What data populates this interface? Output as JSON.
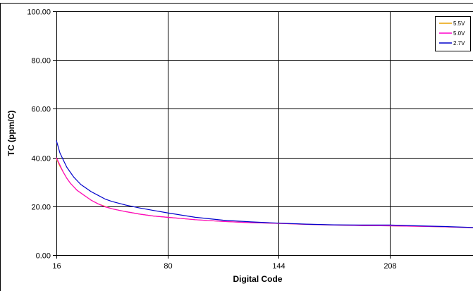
{
  "chart_data": {
    "type": "line",
    "title": "",
    "xlabel": "Digital Code",
    "ylabel": "TC (ppm/C)",
    "xlim": [
      16,
      256
    ],
    "ylim": [
      0,
      100
    ],
    "x_ticks": [
      16,
      80,
      144,
      208
    ],
    "x_tick_labels": [
      "16",
      "80",
      "144",
      "208"
    ],
    "y_ticks": [
      0,
      20,
      40,
      60,
      80,
      100
    ],
    "y_tick_labels": [
      "0.00",
      "20.00",
      "40.00",
      "60.00",
      "80.00",
      "100.00"
    ],
    "grid": true,
    "legend_position": "top-right",
    "x": [
      16,
      18,
      20,
      22,
      24,
      26,
      28,
      30,
      32,
      36,
      40,
      44,
      48,
      56,
      64,
      72,
      80,
      96,
      112,
      128,
      144,
      160,
      176,
      192,
      208,
      224,
      240,
      256
    ],
    "series": [
      {
        "name": "5.5V",
        "color": "#E8A000",
        "values": [
          39.5,
          36.5,
          34.0,
          31.5,
          29.5,
          28.0,
          26.5,
          25.5,
          24.5,
          22.5,
          21.0,
          20.0,
          19.0,
          17.8,
          16.8,
          16.0,
          15.5,
          14.5,
          13.8,
          13.3,
          13.0,
          12.6,
          12.3,
          12.1,
          12.0,
          11.8,
          11.6,
          11.2
        ]
      },
      {
        "name": "5.0V",
        "color": "#FF00CC",
        "values": [
          40.0,
          37.0,
          34.0,
          31.5,
          29.5,
          28.0,
          26.5,
          25.5,
          24.5,
          22.5,
          21.0,
          19.8,
          19.0,
          17.8,
          16.8,
          16.0,
          15.5,
          14.5,
          13.8,
          13.3,
          13.0,
          12.6,
          12.3,
          12.1,
          12.0,
          11.8,
          11.6,
          11.2
        ]
      },
      {
        "name": "2.7V",
        "color": "#0000CC",
        "values": [
          47.0,
          42.0,
          39.0,
          36.0,
          34.0,
          32.0,
          30.5,
          29.0,
          28.0,
          26.0,
          24.5,
          23.0,
          22.0,
          20.5,
          19.3,
          18.3,
          17.3,
          15.5,
          14.3,
          13.6,
          13.1,
          12.7,
          12.4,
          12.3,
          12.3,
          12.0,
          11.7,
          11.3
        ]
      }
    ]
  }
}
